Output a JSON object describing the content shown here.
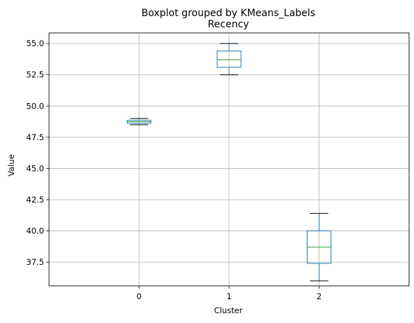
{
  "chart_data": {
    "type": "boxplot",
    "suptitle": "Boxplot grouped by KMeans_Labels",
    "title": "Recency",
    "xlabel": "Cluster",
    "ylabel": "Value",
    "categories": [
      "0",
      "1",
      "2"
    ],
    "ylim": [
      35.6,
      55.85
    ],
    "yticks": [
      37.5,
      40.0,
      42.5,
      45.0,
      47.5,
      50.0,
      52.5,
      55.0
    ],
    "ytick_labels": [
      "37.5",
      "40.0",
      "42.5",
      "45.0",
      "47.5",
      "50.0",
      "52.5",
      "55.0"
    ],
    "grid": true,
    "boxes": [
      {
        "category": "0",
        "whisker_low": 48.5,
        "q1": 48.62,
        "median": 48.75,
        "q3": 48.85,
        "whisker_high": 49.0
      },
      {
        "category": "1",
        "whisker_low": 52.5,
        "q1": 53.1,
        "median": 53.7,
        "q3": 54.4,
        "whisker_high": 55.0
      },
      {
        "category": "2",
        "whisker_low": 36.0,
        "q1": 37.4,
        "median": 38.7,
        "q3": 40.0,
        "whisker_high": 41.4
      }
    ],
    "colors": {
      "box": "#1f77b4",
      "median": "#2ca02c",
      "caps": "#000000",
      "grid": "#b0b0b0"
    }
  }
}
